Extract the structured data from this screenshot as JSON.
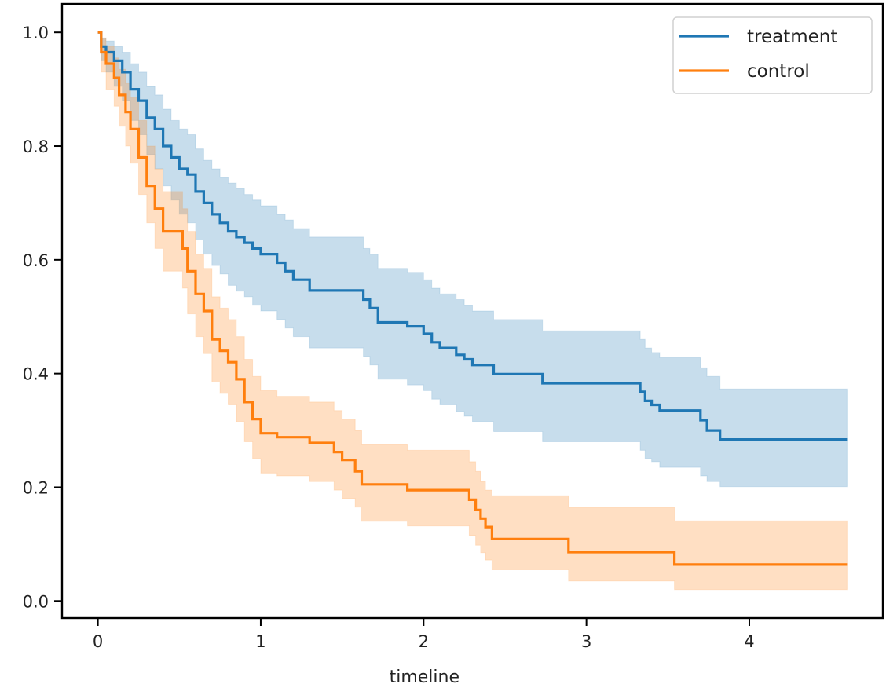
{
  "chart_data": {
    "type": "line",
    "subtype": "kaplan-meier step with confidence bands",
    "title": "",
    "xlabel": "timeline",
    "ylabel": "",
    "xlim": [
      -0.22,
      4.82
    ],
    "ylim": [
      -0.03,
      1.05
    ],
    "xticks": [
      0,
      1,
      2,
      3,
      4
    ],
    "xtick_labels": [
      "0",
      "1",
      "2",
      "3",
      "4"
    ],
    "yticks": [
      0.0,
      0.2,
      0.4,
      0.6,
      0.8,
      1.0
    ],
    "ytick_labels": [
      "0.0",
      "0.2",
      "0.4",
      "0.6",
      "0.8",
      "1.0"
    ],
    "grid": false,
    "legend_position": "top-right",
    "series": [
      {
        "name": "treatment",
        "color": "#1f77b4",
        "band_color": "#1f77b4",
        "t": [
          0,
          0.02,
          0.05,
          0.1,
          0.15,
          0.2,
          0.25,
          0.3,
          0.35,
          0.4,
          0.45,
          0.5,
          0.55,
          0.6,
          0.65,
          0.7,
          0.75,
          0.8,
          0.85,
          0.9,
          0.95,
          1.0,
          1.1,
          1.15,
          1.2,
          1.3,
          1.63,
          1.67,
          1.72,
          1.77,
          1.9,
          2.0,
          2.05,
          2.1,
          2.2,
          2.25,
          2.3,
          2.43,
          2.73,
          3.33,
          3.36,
          3.4,
          3.45,
          3.7,
          3.74,
          3.82,
          4.6
        ],
        "survival": [
          1.0,
          0.975,
          0.965,
          0.95,
          0.93,
          0.9,
          0.88,
          0.85,
          0.83,
          0.8,
          0.78,
          0.76,
          0.75,
          0.72,
          0.7,
          0.68,
          0.665,
          0.65,
          0.64,
          0.63,
          0.62,
          0.61,
          0.595,
          0.58,
          0.565,
          0.546,
          0.53,
          0.515,
          0.49,
          0.49,
          0.483,
          0.47,
          0.455,
          0.445,
          0.433,
          0.425,
          0.415,
          0.399,
          0.383,
          0.368,
          0.352,
          0.345,
          0.335,
          0.318,
          0.3,
          0.284,
          0.284
        ],
        "lower": [
          1.0,
          0.95,
          0.93,
          0.905,
          0.88,
          0.845,
          0.82,
          0.785,
          0.76,
          0.73,
          0.705,
          0.68,
          0.665,
          0.635,
          0.61,
          0.59,
          0.575,
          0.555,
          0.545,
          0.535,
          0.52,
          0.51,
          0.495,
          0.48,
          0.465,
          0.445,
          0.43,
          0.415,
          0.39,
          0.39,
          0.38,
          0.37,
          0.355,
          0.345,
          0.333,
          0.325,
          0.315,
          0.298,
          0.28,
          0.265,
          0.25,
          0.245,
          0.235,
          0.22,
          0.21,
          0.201,
          0.201
        ],
        "upper": [
          1.0,
          0.99,
          0.985,
          0.975,
          0.965,
          0.945,
          0.93,
          0.905,
          0.89,
          0.865,
          0.845,
          0.83,
          0.82,
          0.795,
          0.775,
          0.76,
          0.745,
          0.735,
          0.725,
          0.715,
          0.705,
          0.695,
          0.68,
          0.67,
          0.655,
          0.64,
          0.62,
          0.61,
          0.585,
          0.585,
          0.578,
          0.565,
          0.55,
          0.54,
          0.53,
          0.52,
          0.51,
          0.495,
          0.475,
          0.46,
          0.445,
          0.437,
          0.428,
          0.41,
          0.395,
          0.373,
          0.373
        ]
      },
      {
        "name": "control",
        "color": "#ff7f0e",
        "band_color": "#ff7f0e",
        "t": [
          0,
          0.02,
          0.05,
          0.1,
          0.13,
          0.17,
          0.2,
          0.25,
          0.3,
          0.35,
          0.4,
          0.48,
          0.52,
          0.55,
          0.6,
          0.65,
          0.7,
          0.75,
          0.8,
          0.85,
          0.9,
          0.95,
          1.0,
          1.1,
          1.3,
          1.45,
          1.5,
          1.58,
          1.62,
          1.9,
          2.28,
          2.32,
          2.35,
          2.38,
          2.42,
          2.89,
          3.54,
          4.6
        ],
        "survival": [
          1.0,
          0.965,
          0.945,
          0.92,
          0.89,
          0.86,
          0.83,
          0.78,
          0.73,
          0.69,
          0.65,
          0.65,
          0.62,
          0.58,
          0.54,
          0.51,
          0.46,
          0.44,
          0.42,
          0.39,
          0.35,
          0.32,
          0.295,
          0.288,
          0.278,
          0.262,
          0.248,
          0.228,
          0.205,
          0.195,
          0.178,
          0.16,
          0.145,
          0.13,
          0.109,
          0.086,
          0.064,
          0.064
        ],
        "lower": [
          1.0,
          0.93,
          0.9,
          0.87,
          0.835,
          0.8,
          0.77,
          0.715,
          0.665,
          0.62,
          0.58,
          0.58,
          0.55,
          0.505,
          0.465,
          0.435,
          0.385,
          0.365,
          0.345,
          0.315,
          0.28,
          0.25,
          0.225,
          0.22,
          0.21,
          0.195,
          0.18,
          0.165,
          0.14,
          0.132,
          0.115,
          0.098,
          0.085,
          0.072,
          0.055,
          0.035,
          0.02,
          0.02
        ],
        "upper": [
          1.0,
          0.99,
          0.975,
          0.955,
          0.935,
          0.91,
          0.885,
          0.845,
          0.8,
          0.76,
          0.72,
          0.72,
          0.69,
          0.65,
          0.61,
          0.585,
          0.535,
          0.515,
          0.495,
          0.465,
          0.425,
          0.395,
          0.37,
          0.36,
          0.35,
          0.335,
          0.32,
          0.3,
          0.275,
          0.265,
          0.245,
          0.228,
          0.21,
          0.195,
          0.185,
          0.165,
          0.141,
          0.141
        ]
      }
    ]
  }
}
